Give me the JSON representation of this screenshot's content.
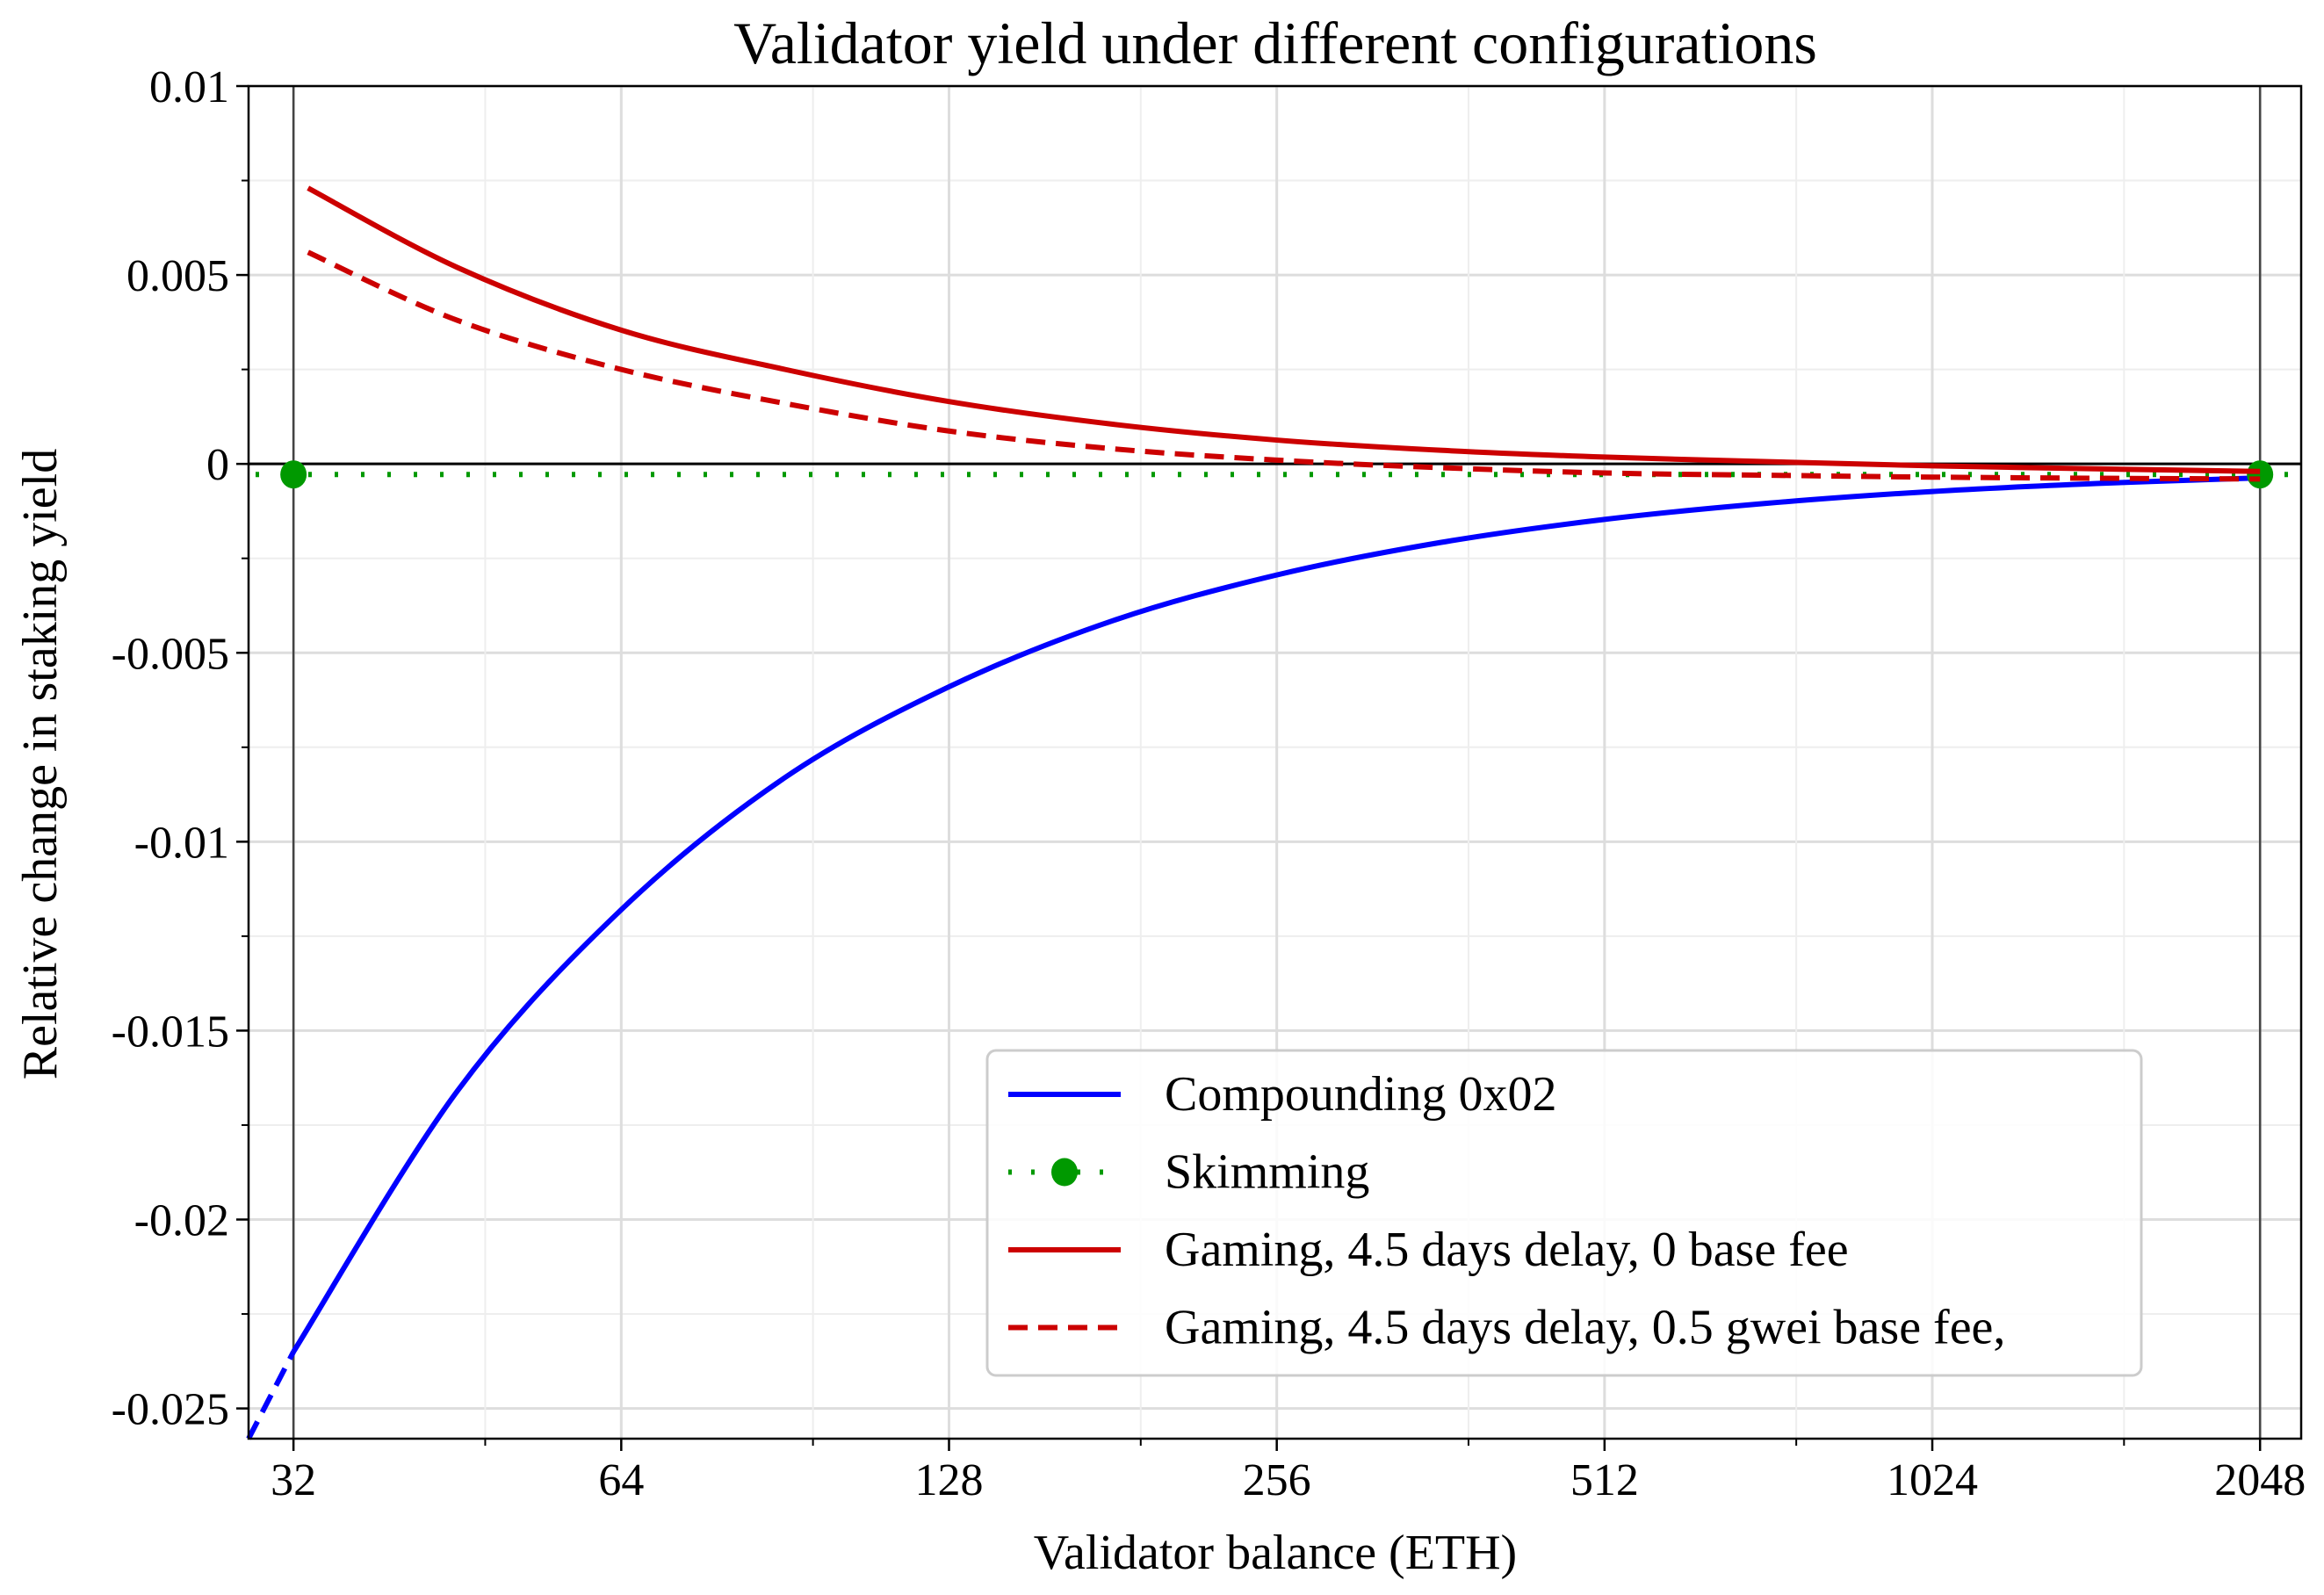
{
  "chart_data": {
    "type": "line",
    "title": "Validator yield under different configurations",
    "xlabel": "Validator balance (ETH)",
    "ylabel": "Relative change in staking yield",
    "x_scale": "log2",
    "xlim": [
      29.1,
      2234
    ],
    "ylim": [
      -0.0258,
      0.01
    ],
    "x_ticks": [
      32,
      64,
      128,
      256,
      512,
      1024,
      2048
    ],
    "x_tick_labels": [
      "32",
      "64",
      "128",
      "256",
      "512",
      "1024",
      "2048"
    ],
    "x_minor_ticks": [
      48,
      96,
      192,
      384,
      768,
      1536
    ],
    "y_ticks": [
      0.01,
      0.005,
      0,
      -0.005,
      -0.01,
      -0.015,
      -0.02,
      -0.025
    ],
    "y_tick_labels": [
      "0.01",
      "0.005",
      "0",
      "-0.005",
      "-0.01",
      "-0.015",
      "-0.02",
      "-0.025"
    ],
    "y_minor_step": 0.0025,
    "grid": true,
    "vertical_reference_lines": [
      32,
      2048
    ],
    "horizontal_reference_line": 0,
    "legend_placement": "lower-right",
    "series": [
      {
        "name": "Compounding 0x02",
        "color": "#0000ff",
        "style": "solid",
        "x": [
          32,
          45.25,
          64,
          90.5,
          128,
          181,
          256,
          362,
          512,
          724,
          1024,
          1448,
          2048
        ],
        "y": [
          -0.0235,
          -0.0166,
          -0.0118,
          -0.0083,
          -0.0059,
          -0.00415,
          -0.00294,
          -0.00208,
          -0.00147,
          -0.00104,
          -0.00073,
          -0.00052,
          -0.00037
        ],
        "extension": {
          "style": "dashed",
          "x": [
            29.1,
            32
          ],
          "y": [
            -0.0258,
            -0.0235
          ]
        }
      },
      {
        "name": "Skimming",
        "color": "#009900",
        "style": "dotted",
        "marker": "circle",
        "x": [
          32,
          2048
        ],
        "y": [
          -0.00028,
          -0.00028
        ]
      },
      {
        "name": "Gaming, 4.5 days delay, 0 base fee",
        "color": "#cc0000",
        "style": "solid",
        "x": [
          33,
          45.25,
          64,
          90.5,
          128,
          181,
          256,
          362,
          512,
          724,
          1024,
          1448,
          2048
        ],
        "y": [
          0.0073,
          0.0052,
          0.00354,
          0.0025,
          0.00165,
          0.00105,
          0.00063,
          0.00036,
          0.00018,
          6e-05,
          -5e-05,
          -0.00013,
          -0.0002
        ]
      },
      {
        "name": "Gaming, 4.5 days delay, 0.5 gwei base fee,",
        "color": "#cc0000",
        "style": "dashed",
        "x": [
          33,
          45.25,
          64,
          90.5,
          128,
          181,
          256,
          362,
          512,
          724,
          1024,
          1448,
          2048
        ],
        "y": [
          0.0056,
          0.0038,
          0.0025,
          0.0016,
          0.00087,
          0.0004,
          0.0001,
          -0.0001,
          -0.00024,
          -0.0003,
          -0.00035,
          -0.00038,
          -0.0004
        ]
      }
    ]
  }
}
